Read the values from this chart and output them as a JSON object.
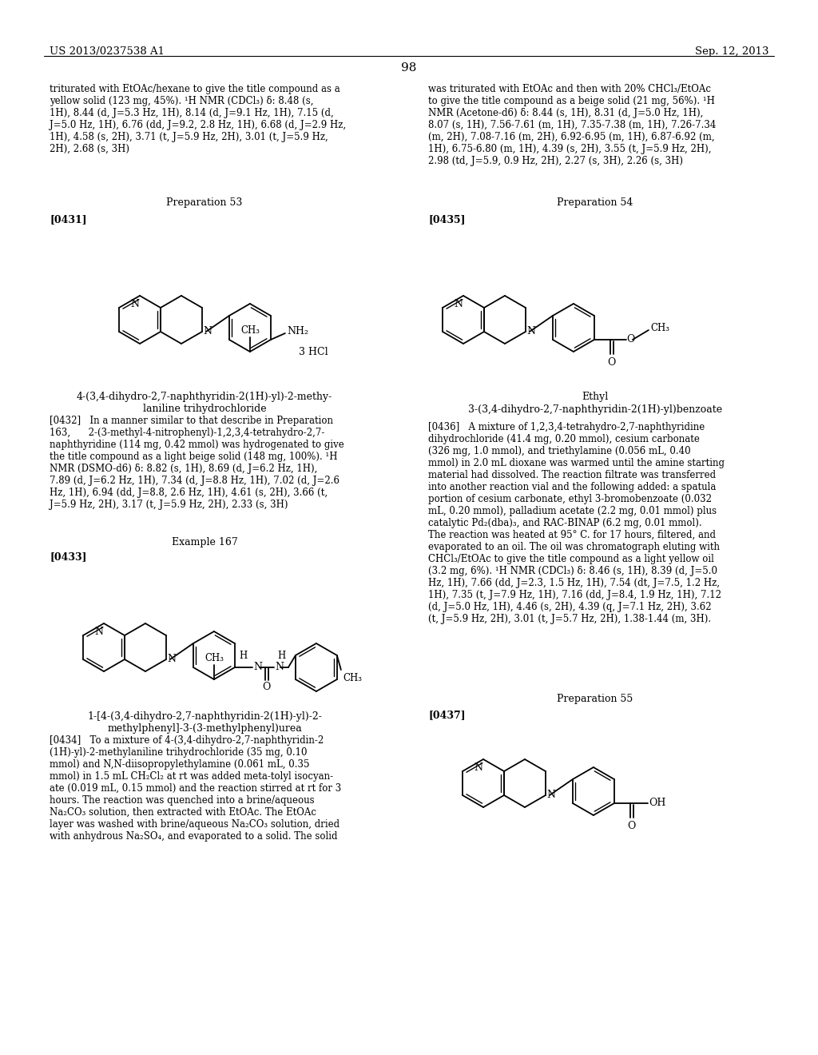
{
  "background_color": "#ffffff",
  "header_left": "US 2013/0237538 A1",
  "header_right": "Sep. 12, 2013",
  "page_number": "98",
  "left_top_text": "triturated with EtOAc/hexane to give the title compound as a\nyellow solid (123 mg, 45%). ¹H NMR (CDCl₃) δ: 8.48 (s,\n1H), 8.44 (d, J=5.3 Hz, 1H), 8.14 (d, J=9.1 Hz, 1H), 7.15 (d,\nJ=5.0 Hz, 1H), 6.76 (dd, J=9.2, 2.8 Hz, 1H), 6.68 (d, J=2.9 Hz,\n1H), 4.58 (s, 2H), 3.71 (t, J=5.9 Hz, 2H), 3.01 (t, J=5.9 Hz,\n2H), 2.68 (s, 3H)",
  "right_top_text": "was triturated with EtOAc and then with 20% CHCl₃/EtOAc\nto give the title compound as a beige solid (21 mg, 56%). ¹H\nNMR (Acetone-d6) δ: 8.44 (s, 1H), 8.31 (d, J=5.0 Hz, 1H),\n8.07 (s, 1H), 7.56-7.61 (m, 1H), 7.35-7.38 (m, 1H), 7.26-7.34\n(m, 2H), 7.08-7.16 (m, 2H), 6.92-6.95 (m, 1H), 6.87-6.92 (m,\n1H), 6.75-6.80 (m, 1H), 4.39 (s, 2H), 3.55 (t, J=5.9 Hz, 2H),\n2.98 (td, J=5.9, 0.9 Hz, 2H), 2.27 (s, 3H), 2.26 (s, 3H)",
  "prep53_label": "Preparation 53",
  "prep54_label": "Preparation 54",
  "para0431_label": "[0431]",
  "para0435_label": "[0435]",
  "compound1_name": "4-(3,4-dihydro-2,7-naphthyridin-2(1H)-yl)-2-methy-\nlaniline trihydrochloride",
  "para0432_text": "[0432]   In a manner similar to that describe in Preparation\n163,      2-(3-methyl-4-nitrophenyl)-1,2,3,4-tetrahydro-2,7-\nnaphthyridine (114 mg, 0.42 mmol) was hydrogenated to give\nthe title compound as a light beige solid (148 mg, 100%). ¹H\nNMR (DSMO-d6) δ: 8.82 (s, 1H), 8.69 (d, J=6.2 Hz, 1H),\n7.89 (d, J=6.2 Hz, 1H), 7.34 (d, J=8.8 Hz, 1H), 7.02 (d, J=2.6\nHz, 1H), 6.94 (dd, J=8.8, 2.6 Hz, 1H), 4.61 (s, 2H), 3.66 (t,\nJ=5.9 Hz, 2H), 3.17 (t, J=5.9 Hz, 2H), 2.33 (s, 3H)",
  "example167_label": "Example 167",
  "para0433_label": "[0433]",
  "compound2_name": "1-[4-(3,4-dihydro-2,7-naphthyridin-2(1H)-yl)-2-\nmethylphenyl]-3-(3-methylphenyl)urea",
  "para0434_text": "[0434]   To a mixture of 4-(3,4-dihydro-2,7-naphthyridin-2\n(1H)-yl)-2-methylaniline trihydrochloride (35 mg, 0.10\nmmol) and N,N-diisopropylethylamine (0.061 mL, 0.35\nmmol) in 1.5 mL CH₂Cl₂ at rt was added meta-tolyl isocyan-\nate (0.019 mL, 0.15 mmol) and the reaction stirred at rt for 3\nhours. The reaction was quenched into a brine/aqueous\nNa₂CO₃ solution, then extracted with EtOAc. The EtOAc\nlayer was washed with brine/aqueous Na₂CO₃ solution, dried\nwith anhydrous Na₂SO₄, and evaporated to a solid. The solid",
  "compound3_label": "Ethyl",
  "compound3_name": "3-(3,4-dihydro-2,7-naphthyridin-2(1H)-yl)benzoate",
  "para0436_text": "[0436]   A mixture of 1,2,3,4-tetrahydro-2,7-naphthyridine\ndihydrochloride (41.4 mg, 0.20 mmol), cesium carbonate\n(326 mg, 1.0 mmol), and triethylamine (0.056 mL, 0.40\nmmol) in 2.0 mL dioxane was warmed until the amine starting\nmaterial had dissolved. The reaction filtrate was transferred\ninto another reaction vial and the following added: a spatula\nportion of cesium carbonate, ethyl 3-bromobenzoate (0.032\nmL, 0.20 mmol), palladium acetate (2.2 mg, 0.01 mmol) plus\ncatalytic Pd₂(dba)₃, and RAC-BINAP (6.2 mg, 0.01 mmol).\nThe reaction was heated at 95° C. for 17 hours, filtered, and\nevaporated to an oil. The oil was chromatograph eluting with\nCHCl₃/EtOAc to give the title compound as a light yellow oil\n(3.2 mg, 6%). ¹H NMR (CDCl₃) δ: 8.46 (s, 1H), 8.39 (d, J=5.0\nHz, 1H), 7.66 (dd, J=2.3, 1.5 Hz, 1H), 7.54 (dt, J=7.5, 1.2 Hz,\n1H), 7.35 (t, J=7.9 Hz, 1H), 7.16 (dd, J=8.4, 1.9 Hz, 1H), 7.12\n(d, J=5.0 Hz, 1H), 4.46 (s, 2H), 4.39 (q, J=7.1 Hz, 2H), 3.62\n(t, J=5.9 Hz, 2H), 3.01 (t, J=5.7 Hz, 2H), 1.38-1.44 (m, 3H).",
  "prep55_label": "Preparation 55",
  "para0437_label": "[0437]"
}
